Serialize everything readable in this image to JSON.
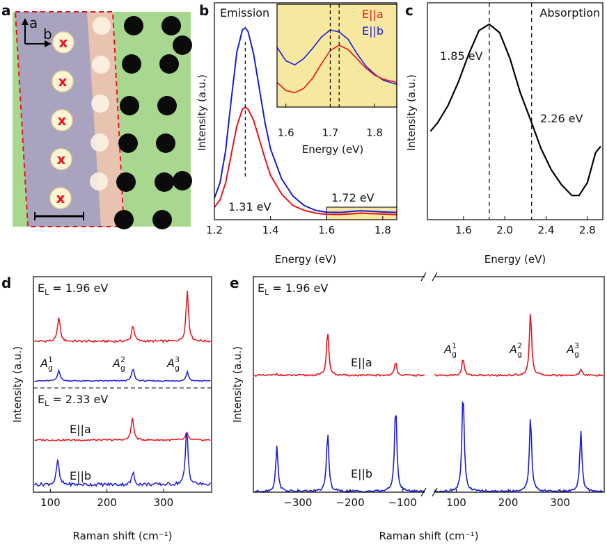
{
  "figure": {
    "panel_labels": [
      "a",
      "b",
      "c",
      "d",
      "e"
    ],
    "micrograph": {
      "axis_a": "a",
      "axis_b": "b",
      "marker": "x",
      "marker_color": "#e8121a",
      "outline_color": "#e8121a",
      "hole_count_left": 5,
      "hole_count_right": 14
    },
    "colors": {
      "E_parallel_a": "#e8121a",
      "E_parallel_b": "#1a1adb",
      "highlight": "#f7e8a0",
      "absorption": "#000000"
    }
  },
  "chart_data": [
    {
      "panel": "b",
      "type": "line",
      "title": "Emission",
      "xlabel": "Energy (eV)",
      "ylabel": "Intensity (a.u.)",
      "xlim": [
        1.2,
        1.85
      ],
      "xticks": [
        "1.2",
        "1.4",
        "1.6",
        "1.8"
      ],
      "annotations": [
        "1.31 eV",
        "1.72 eV"
      ],
      "peak_line_x": 1.31,
      "highlight_range": [
        1.6,
        1.85
      ],
      "series": [
        {
          "name": "E||b",
          "color": "#1a1adb",
          "x": [
            1.2,
            1.22,
            1.24,
            1.26,
            1.28,
            1.3,
            1.31,
            1.32,
            1.34,
            1.36,
            1.38,
            1.4,
            1.44,
            1.48,
            1.52,
            1.56,
            1.6,
            1.65,
            1.7,
            1.72,
            1.75,
            1.8,
            1.85
          ],
          "y": [
            0.1,
            0.18,
            0.35,
            0.62,
            0.87,
            0.99,
            1.0,
            0.98,
            0.86,
            0.68,
            0.5,
            0.36,
            0.2,
            0.11,
            0.06,
            0.035,
            0.025,
            0.024,
            0.03,
            0.032,
            0.03,
            0.026,
            0.024
          ]
        },
        {
          "name": "E||a",
          "color": "#e8121a",
          "x": [
            1.2,
            1.22,
            1.24,
            1.26,
            1.28,
            1.3,
            1.31,
            1.32,
            1.34,
            1.36,
            1.38,
            1.4,
            1.44,
            1.48,
            1.52,
            1.56,
            1.6,
            1.65,
            1.7,
            1.72,
            1.75,
            1.8,
            1.85
          ],
          "y": [
            0.05,
            0.09,
            0.18,
            0.33,
            0.48,
            0.57,
            0.58,
            0.57,
            0.51,
            0.41,
            0.31,
            0.22,
            0.12,
            0.06,
            0.035,
            0.02,
            0.014,
            0.013,
            0.017,
            0.02,
            0.018,
            0.015,
            0.012
          ]
        }
      ]
    },
    {
      "panel": "b-inset",
      "type": "line",
      "legend": [
        "E||a",
        "E||b"
      ],
      "xlabel": "Energy (eV)",
      "xlim": [
        1.58,
        1.85
      ],
      "xticks": [
        "1.6",
        "1.7",
        "1.8"
      ],
      "vlines": [
        1.7,
        1.72
      ],
      "series": [
        {
          "name": "E||b",
          "color": "#1a1adb",
          "x": [
            1.58,
            1.6,
            1.62,
            1.64,
            1.66,
            1.68,
            1.7,
            1.72,
            1.74,
            1.76,
            1.78,
            1.8,
            1.82,
            1.85
          ],
          "y": [
            0.58,
            0.45,
            0.41,
            0.47,
            0.57,
            0.68,
            0.75,
            0.73,
            0.66,
            0.52,
            0.4,
            0.32,
            0.26,
            0.22
          ]
        },
        {
          "name": "E||a",
          "color": "#e8121a",
          "x": [
            1.58,
            1.6,
            1.62,
            1.64,
            1.66,
            1.68,
            1.7,
            1.72,
            1.74,
            1.76,
            1.78,
            1.8,
            1.82,
            1.85
          ],
          "y": [
            0.24,
            0.16,
            0.14,
            0.18,
            0.28,
            0.42,
            0.55,
            0.6,
            0.56,
            0.47,
            0.38,
            0.31,
            0.27,
            0.24
          ]
        }
      ]
    },
    {
      "panel": "c",
      "type": "line",
      "title": "Absorption",
      "xlabel": "Energy (eV)",
      "ylabel": "Intensity (a.u.)",
      "xlim": [
        1.25,
        2.95
      ],
      "xticks": [
        "1.6",
        "2.0",
        "2.4",
        "2.8"
      ],
      "annotations": [
        "1.85 eV",
        "2.26 eV"
      ],
      "vlines": [
        1.85,
        2.26
      ],
      "series": [
        {
          "name": "",
          "color": "#000000",
          "x": [
            1.28,
            1.35,
            1.45,
            1.55,
            1.65,
            1.75,
            1.85,
            1.95,
            2.05,
            2.15,
            2.26,
            2.35,
            2.45,
            2.55,
            2.65,
            2.72,
            2.8,
            2.88,
            2.93
          ],
          "y": [
            0.4,
            0.44,
            0.52,
            0.63,
            0.76,
            0.87,
            0.9,
            0.86,
            0.74,
            0.58,
            0.44,
            0.32,
            0.22,
            0.15,
            0.1,
            0.1,
            0.16,
            0.3,
            0.33
          ]
        }
      ]
    },
    {
      "panel": "d",
      "type": "line",
      "xlabel": "Raman shift (cm⁻¹)",
      "ylabel": "Intensity (a.u.)",
      "xlim": [
        70,
        385
      ],
      "xticks": [
        "100",
        "200",
        "300"
      ],
      "annotations": [
        "E",
        "L",
        " = 1.96 eV",
        "E",
        "L",
        " = 2.33 eV",
        "E||a",
        "E||b"
      ],
      "peak_labels": [
        "A",
        "g",
        "1",
        "A",
        "g",
        "2",
        "A",
        "g",
        "3"
      ],
      "series": [
        {
          "name": "1.96 eV E||a",
          "color": "#e8121a",
          "peaks": [
            [
              115,
              0.45
            ],
            [
              246,
              0.3
            ],
            [
              342,
              0.92
            ]
          ]
        },
        {
          "name": "1.96 eV E||b",
          "color": "#1a1adb",
          "peaks": [
            [
              115,
              0.4
            ],
            [
              246,
              0.45
            ],
            [
              342,
              0.33
            ]
          ]
        },
        {
          "name": "2.33 eV E||a",
          "color": "#e8121a",
          "peaks": [
            [
              245,
              0.55
            ],
            [
              341,
              0.18
            ]
          ]
        },
        {
          "name": "2.33 eV E||b",
          "color": "#1a1adb",
          "peaks": [
            [
              113,
              0.52
            ],
            [
              246,
              0.25
            ],
            [
              341,
              1.15
            ]
          ]
        }
      ]
    },
    {
      "panel": "e",
      "type": "line",
      "xlabel": "Raman shift (cm⁻¹)",
      "ylabel": "Intensity (a.u.)",
      "xlim": [
        -385,
        385
      ],
      "axis_break": [
        -55,
        55
      ],
      "xticks": [
        "−300",
        "−200",
        "−100",
        "100",
        "200",
        "300"
      ],
      "annotations": [
        "E",
        "L",
        " = 1.96 eV",
        "E||a",
        "E||b"
      ],
      "peak_labels": [
        "A",
        "g",
        "1",
        "A",
        "g",
        "2",
        "A",
        "g",
        "3"
      ],
      "series": [
        {
          "name": "E||a",
          "color": "#e8121a",
          "peaks": [
            [
              -340,
              0.03
            ],
            [
              -243,
              0.8
            ],
            [
              -113,
              0.24
            ],
            [
              113,
              0.3
            ],
            [
              243,
              1.15
            ],
            [
              340,
              0.12
            ]
          ]
        },
        {
          "name": "E||b",
          "color": "#1a1adb",
          "peaks": [
            [
              -340,
              0.65
            ],
            [
              -243,
              0.85
            ],
            [
              -113,
              1.25
            ],
            [
              113,
              1.45
            ],
            [
              243,
              1.1
            ],
            [
              340,
              0.86
            ]
          ]
        }
      ]
    }
  ]
}
